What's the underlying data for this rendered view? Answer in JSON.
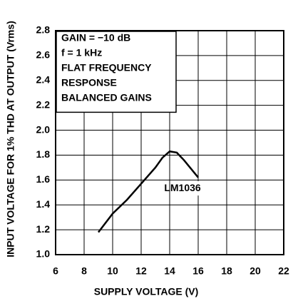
{
  "chart_data": {
    "type": "line",
    "x_label": "SUPPLY VOLTAGE (V)",
    "y_label": "INPUT VOLTAGE FOR 1% THD AT OUTPUT (Vrms)",
    "annotations": [
      "GAIN = −10 dB",
      "f = 1 kHz",
      "FLAT FREQUENCY",
      "RESPONSE",
      "BALANCED GAINS"
    ],
    "series": [
      {
        "name": "LM1036",
        "color": "#000000",
        "x": [
          9,
          10,
          11,
          12,
          13,
          13.5,
          14,
          14.5,
          15,
          16
        ],
        "values": [
          1.18,
          1.33,
          1.44,
          1.57,
          1.7,
          1.78,
          1.83,
          1.82,
          1.76,
          1.62
        ]
      }
    ],
    "xlim": [
      6,
      22
    ],
    "xticks": [
      6,
      8,
      10,
      12,
      14,
      16,
      18,
      20,
      22
    ],
    "ylim": [
      1.0,
      2.8
    ],
    "yticks": [
      {
        "value": 1.0,
        "label": "1.0"
      },
      1.2,
      1.4,
      1.6,
      1.8,
      {
        "value": 2.0,
        "label": "2.0"
      },
      2.2,
      2.4,
      2.6,
      2.8
    ],
    "grid": true
  }
}
